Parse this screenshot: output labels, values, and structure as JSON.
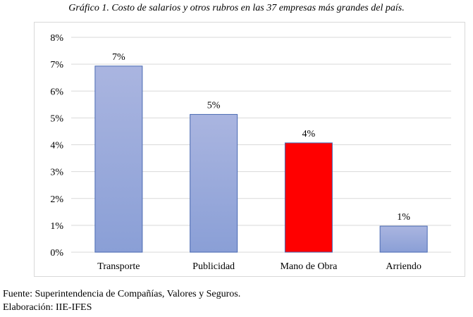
{
  "chart_data": {
    "type": "bar",
    "title": "Gráfico 1. Costo de salarios y otros rubros en las 37 empresas más grandes del país.",
    "categories": [
      "Transporte",
      "Publicidad",
      "Mano de Obra",
      "Arriendo"
    ],
    "values": [
      6.93,
      5.13,
      4.07,
      0.97
    ],
    "data_labels": [
      "7%",
      "5%",
      "4%",
      "1%"
    ],
    "y_ticks": [
      "0%",
      "1%",
      "2%",
      "3%",
      "4%",
      "5%",
      "6%",
      "7%",
      "8%"
    ],
    "ylim": [
      0,
      8
    ],
    "grid": true,
    "legend": "none",
    "colors": {
      "default_bar_top": "#aab5e0",
      "default_bar_bottom": "#8a9fd6",
      "default_bar_border": "#4a6ab3",
      "highlight_bar": "#ff0000",
      "highlight_index": 2,
      "gridline": "#d9d9d9"
    }
  },
  "footer": {
    "source": "Fuente: Superintendencia de Compañías, Valores y Seguros.",
    "credit": "Elaboración: IIE-IFES"
  }
}
